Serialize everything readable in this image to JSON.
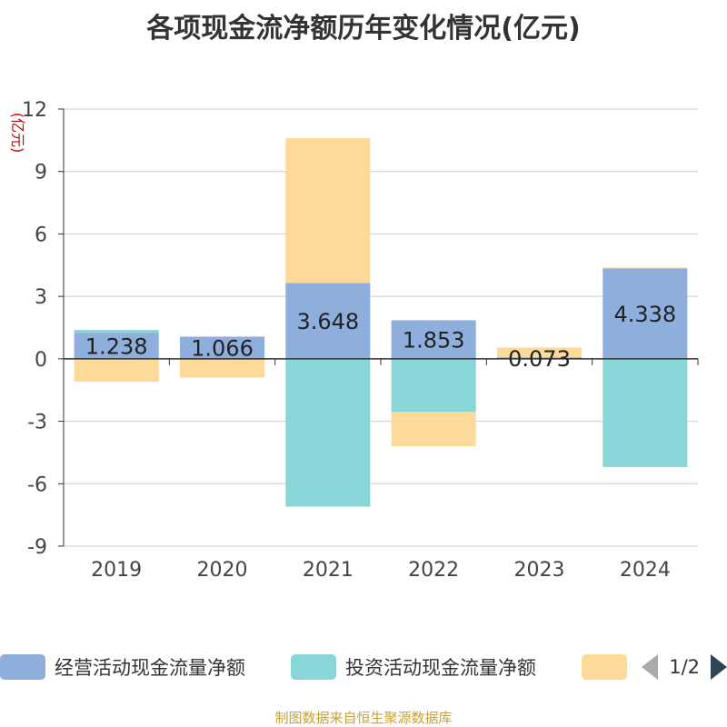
{
  "title": "各项现金流净额历年变化情况(亿元)",
  "source": "制图数据来自恒生聚源数据库",
  "legend_pager": {
    "text": "1/2"
  },
  "chart_data": {
    "type": "bar",
    "stacked": true,
    "categories": [
      "2019",
      "2020",
      "2021",
      "2022",
      "2023",
      "2024"
    ],
    "ylabel": "(亿元)",
    "ylim": [
      -9,
      12
    ],
    "yticks": [
      "12",
      "9",
      "6",
      "3",
      "0",
      "-3",
      "-6",
      "-9"
    ],
    "grid": true,
    "legend_position": "bottom",
    "series": [
      {
        "name": "经营活动现金流量净额",
        "color": "#8eaedc",
        "values": [
          1.238,
          1.066,
          3.648,
          1.853,
          0.073,
          4.338
        ],
        "labels": [
          "1.238",
          "1.066",
          "3.648",
          "1.853",
          "0.073",
          "4.338"
        ]
      },
      {
        "name": "投资活动现金流量净额",
        "color": "#88d6d8",
        "values": [
          0.15,
          -0.05,
          -7.1,
          -2.55,
          0.02,
          -5.2
        ]
      },
      {
        "name": "",
        "color": "#fdd99a",
        "values": [
          -1.1,
          -0.85,
          6.95,
          -1.65,
          0.45,
          0.05
        ]
      }
    ]
  }
}
